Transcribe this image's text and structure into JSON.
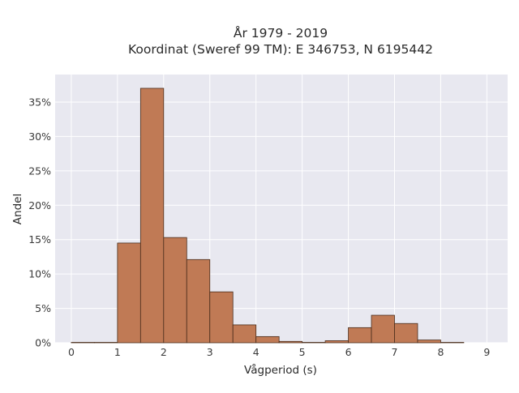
{
  "chart_data": {
    "type": "bar",
    "title_lines": [
      "År 1979 - 2019",
      "Koordinat (Sweref 99 TM): E 346753, N 6195442"
    ],
    "xlabel": "Vågperiod (s)",
    "ylabel": "Andel",
    "xlim": [
      -0.35,
      9.45
    ],
    "ylim": [
      0,
      0.39
    ],
    "x_ticks": [
      0,
      1,
      2,
      3,
      4,
      5,
      6,
      7,
      8,
      9
    ],
    "x_tick_labels": [
      "0",
      "1",
      "2",
      "3",
      "4",
      "5",
      "6",
      "7",
      "8",
      "9"
    ],
    "y_ticks": [
      0,
      0.05,
      0.1,
      0.15,
      0.2,
      0.25,
      0.3,
      0.35
    ],
    "y_tick_labels": [
      "0%",
      "5%",
      "10%",
      "15%",
      "20%",
      "25%",
      "30%",
      "35%"
    ],
    "bin_width": 0.5,
    "bin_starts": [
      0,
      0.5,
      1.0,
      1.5,
      2.0,
      2.5,
      3.0,
      3.5,
      4.0,
      4.5,
      5.0,
      5.5,
      6.0,
      6.5,
      7.0,
      7.5,
      8.0
    ],
    "values": [
      0.0003,
      0,
      0.145,
      0.37,
      0.153,
      0.121,
      0.074,
      0.026,
      0.009,
      0.002,
      0.0005,
      0.003,
      0.022,
      0.04,
      0.028,
      0.004,
      0.0005
    ],
    "bar_color": "#c07a55",
    "background_color": "#e8e8f0",
    "grid": true,
    "legend": false
  }
}
